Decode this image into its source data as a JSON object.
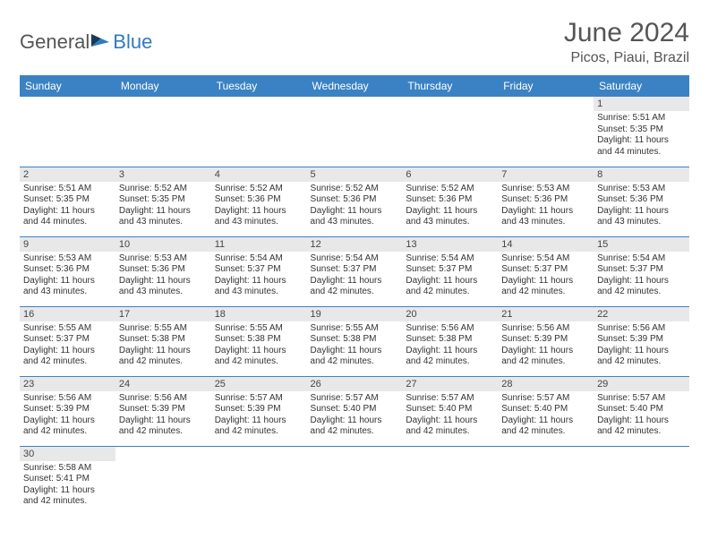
{
  "logo": {
    "text1": "General",
    "text2": "Blue"
  },
  "title": "June 2024",
  "location": "Picos, Piaui, Brazil",
  "colors": {
    "header_bg": "#3b82c4",
    "header_text": "#ffffff",
    "daynum_bg": "#e8e8e8",
    "border": "#3b82c4",
    "logo_blue": "#2f7bbf",
    "flag_dark": "#1a3a5c",
    "flag_light": "#2f7bbf"
  },
  "weekdays": [
    "Sunday",
    "Monday",
    "Tuesday",
    "Wednesday",
    "Thursday",
    "Friday",
    "Saturday"
  ],
  "weeks": [
    [
      null,
      null,
      null,
      null,
      null,
      null,
      {
        "n": "1",
        "sr": "5:51 AM",
        "ss": "5:35 PM",
        "dl": "11 hours and 44 minutes."
      }
    ],
    [
      {
        "n": "2",
        "sr": "5:51 AM",
        "ss": "5:35 PM",
        "dl": "11 hours and 44 minutes."
      },
      {
        "n": "3",
        "sr": "5:52 AM",
        "ss": "5:35 PM",
        "dl": "11 hours and 43 minutes."
      },
      {
        "n": "4",
        "sr": "5:52 AM",
        "ss": "5:36 PM",
        "dl": "11 hours and 43 minutes."
      },
      {
        "n": "5",
        "sr": "5:52 AM",
        "ss": "5:36 PM",
        "dl": "11 hours and 43 minutes."
      },
      {
        "n": "6",
        "sr": "5:52 AM",
        "ss": "5:36 PM",
        "dl": "11 hours and 43 minutes."
      },
      {
        "n": "7",
        "sr": "5:53 AM",
        "ss": "5:36 PM",
        "dl": "11 hours and 43 minutes."
      },
      {
        "n": "8",
        "sr": "5:53 AM",
        "ss": "5:36 PM",
        "dl": "11 hours and 43 minutes."
      }
    ],
    [
      {
        "n": "9",
        "sr": "5:53 AM",
        "ss": "5:36 PM",
        "dl": "11 hours and 43 minutes."
      },
      {
        "n": "10",
        "sr": "5:53 AM",
        "ss": "5:36 PM",
        "dl": "11 hours and 43 minutes."
      },
      {
        "n": "11",
        "sr": "5:54 AM",
        "ss": "5:37 PM",
        "dl": "11 hours and 43 minutes."
      },
      {
        "n": "12",
        "sr": "5:54 AM",
        "ss": "5:37 PM",
        "dl": "11 hours and 42 minutes."
      },
      {
        "n": "13",
        "sr": "5:54 AM",
        "ss": "5:37 PM",
        "dl": "11 hours and 42 minutes."
      },
      {
        "n": "14",
        "sr": "5:54 AM",
        "ss": "5:37 PM",
        "dl": "11 hours and 42 minutes."
      },
      {
        "n": "15",
        "sr": "5:54 AM",
        "ss": "5:37 PM",
        "dl": "11 hours and 42 minutes."
      }
    ],
    [
      {
        "n": "16",
        "sr": "5:55 AM",
        "ss": "5:37 PM",
        "dl": "11 hours and 42 minutes."
      },
      {
        "n": "17",
        "sr": "5:55 AM",
        "ss": "5:38 PM",
        "dl": "11 hours and 42 minutes."
      },
      {
        "n": "18",
        "sr": "5:55 AM",
        "ss": "5:38 PM",
        "dl": "11 hours and 42 minutes."
      },
      {
        "n": "19",
        "sr": "5:55 AM",
        "ss": "5:38 PM",
        "dl": "11 hours and 42 minutes."
      },
      {
        "n": "20",
        "sr": "5:56 AM",
        "ss": "5:38 PM",
        "dl": "11 hours and 42 minutes."
      },
      {
        "n": "21",
        "sr": "5:56 AM",
        "ss": "5:39 PM",
        "dl": "11 hours and 42 minutes."
      },
      {
        "n": "22",
        "sr": "5:56 AM",
        "ss": "5:39 PM",
        "dl": "11 hours and 42 minutes."
      }
    ],
    [
      {
        "n": "23",
        "sr": "5:56 AM",
        "ss": "5:39 PM",
        "dl": "11 hours and 42 minutes."
      },
      {
        "n": "24",
        "sr": "5:56 AM",
        "ss": "5:39 PM",
        "dl": "11 hours and 42 minutes."
      },
      {
        "n": "25",
        "sr": "5:57 AM",
        "ss": "5:39 PM",
        "dl": "11 hours and 42 minutes."
      },
      {
        "n": "26",
        "sr": "5:57 AM",
        "ss": "5:40 PM",
        "dl": "11 hours and 42 minutes."
      },
      {
        "n": "27",
        "sr": "5:57 AM",
        "ss": "5:40 PM",
        "dl": "11 hours and 42 minutes."
      },
      {
        "n": "28",
        "sr": "5:57 AM",
        "ss": "5:40 PM",
        "dl": "11 hours and 42 minutes."
      },
      {
        "n": "29",
        "sr": "5:57 AM",
        "ss": "5:40 PM",
        "dl": "11 hours and 42 minutes."
      }
    ],
    [
      {
        "n": "30",
        "sr": "5:58 AM",
        "ss": "5:41 PM",
        "dl": "11 hours and 42 minutes."
      },
      null,
      null,
      null,
      null,
      null,
      null
    ]
  ],
  "labels": {
    "sunrise": "Sunrise:",
    "sunset": "Sunset:",
    "daylight": "Daylight:"
  }
}
